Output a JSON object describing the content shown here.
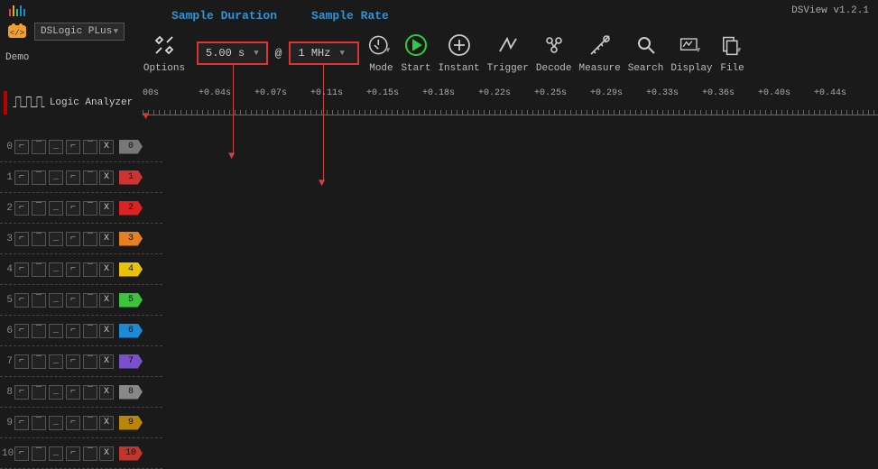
{
  "version": "DSView v1.2.1",
  "demo_label": "Demo",
  "device_name": "DSLogic PLus",
  "annotations": {
    "sample_duration": "Sample Duration",
    "sample_rate": "Sample Rate"
  },
  "sample": {
    "duration": "5.00 s",
    "rate": "1 MHz",
    "at": "@"
  },
  "tools": {
    "options": "Options",
    "mode": "Mode",
    "start": "Start",
    "instant": "Instant",
    "trigger": "Trigger",
    "decode": "Decode",
    "measure": "Measure",
    "search": "Search",
    "display": "Display",
    "file": "File"
  },
  "la_label": "Logic Analyzer",
  "ruler": [
    "00s",
    "+0.04s",
    "+0.07s",
    "+0.11s",
    "+0.15s",
    "+0.18s",
    "+0.22s",
    "+0.25s",
    "+0.29s",
    "+0.33s",
    "+0.36s",
    "+0.40s",
    "+0.44s"
  ],
  "channels": [
    {
      "n": "0",
      "color": "#777"
    },
    {
      "n": "1",
      "color": "#c33"
    },
    {
      "n": "2",
      "color": "#d22"
    },
    {
      "n": "3",
      "color": "#e67e22"
    },
    {
      "n": "4",
      "color": "#e8c20a"
    },
    {
      "n": "5",
      "color": "#3bc43b"
    },
    {
      "n": "6",
      "color": "#1b8bd6"
    },
    {
      "n": "7",
      "color": "#7b4fc9"
    },
    {
      "n": "8",
      "color": "#888"
    },
    {
      "n": "9",
      "color": "#b8860b"
    },
    {
      "n": "10",
      "color": "#c1352a"
    }
  ],
  "channel_glyphs": [
    "⌐",
    "‾",
    "_",
    "⌐",
    "‾"
  ],
  "channel_x": "X",
  "logo_colors": [
    "#d44",
    "#f0a030",
    "#3bc43b",
    "#1b8bd6",
    "#1b8bd6"
  ]
}
